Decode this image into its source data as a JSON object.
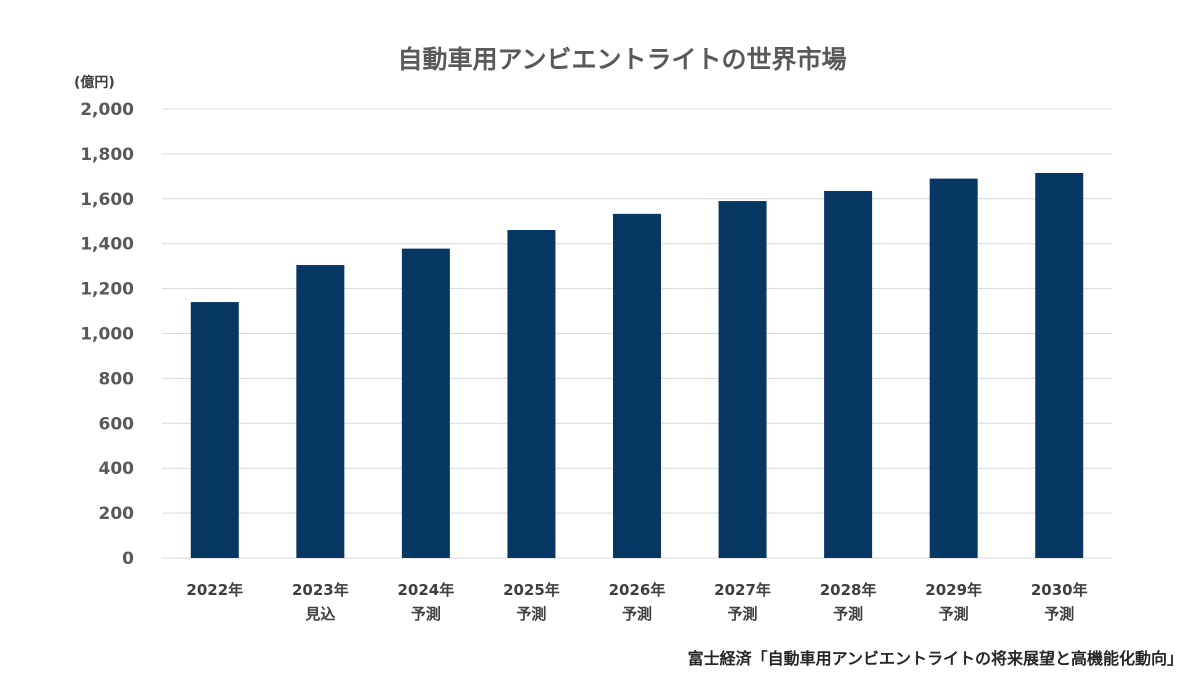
{
  "chart_data": {
    "type": "bar",
    "title": "自動車用アンビエントライトの世界市場",
    "unit_label": "(億円)",
    "categories": [
      {
        "year": "2022年",
        "note": ""
      },
      {
        "year": "2023年",
        "note": "見込"
      },
      {
        "year": "2024年",
        "note": "予測"
      },
      {
        "year": "2025年",
        "note": "予測"
      },
      {
        "year": "2026年",
        "note": "予測"
      },
      {
        "year": "2027年",
        "note": "予測"
      },
      {
        "year": "2028年",
        "note": "予測"
      },
      {
        "year": "2029年",
        "note": "予測"
      },
      {
        "year": "2030年",
        "note": "予測"
      }
    ],
    "values": [
      1140,
      1305,
      1378,
      1461,
      1533,
      1590,
      1635,
      1690,
      1715
    ],
    "ylim": [
      0,
      2000
    ],
    "yticks": [
      "0",
      "200",
      "400",
      "600",
      "800",
      "1,000",
      "1,200",
      "1,400",
      "1,600",
      "1,800",
      "2,000"
    ],
    "ytick_values": [
      0,
      200,
      400,
      600,
      800,
      1000,
      1200,
      1400,
      1600,
      1800,
      2000
    ],
    "grid": true,
    "bar_color": "#073763",
    "source": "富士経済「自動車用アンビエントライトの将来展望と高機能化動向」"
  }
}
